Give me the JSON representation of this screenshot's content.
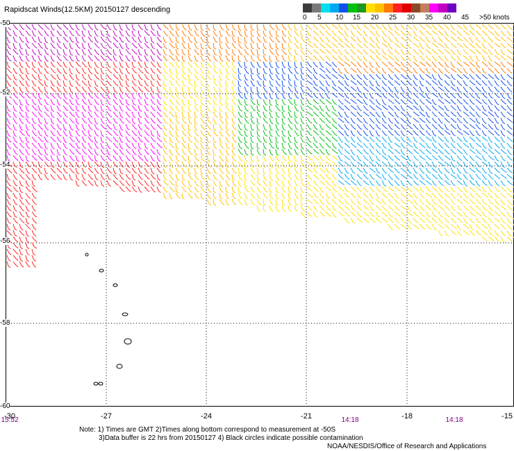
{
  "title": "Rapidscat Winds(12.5KM) 20150127 descending",
  "legend": {
    "colors": [
      "#3c3c3c",
      "#7a7a7a",
      "#00e0f0",
      "#00a8f0",
      "#1050f0",
      "#00c010",
      "#1d9a1d",
      "#ffe000",
      "#ffc000",
      "#ff7a00",
      "#ff2020",
      "#e00000",
      "#8a4a28",
      "#c08060",
      "#ff00ff",
      "#c000c0",
      "#7000c0"
    ],
    "labels": [
      "0",
      "5",
      "10",
      "15",
      "20",
      "25",
      "30",
      "35",
      "40",
      "45",
      ">50 knots"
    ]
  },
  "axes": {
    "y_labels": [
      "-50",
      "-52",
      "-54",
      "-56",
      "-58",
      "-60"
    ],
    "x_labels": [
      "-30",
      "-27",
      "-24",
      "-21",
      "-18",
      "-15"
    ]
  },
  "times": [
    "15:52",
    "14:18",
    "14:18"
  ],
  "notes": {
    "line1": "Note: 1) Times are GMT 2)Times along bottom correspond to measurement at -50S",
    "line2": "3)Data buffer is 22 hrs from 20150127 4) Black circles indicate possible contamination",
    "credit": "NOAA/NESDIS/Office of Research and Applications"
  }
}
